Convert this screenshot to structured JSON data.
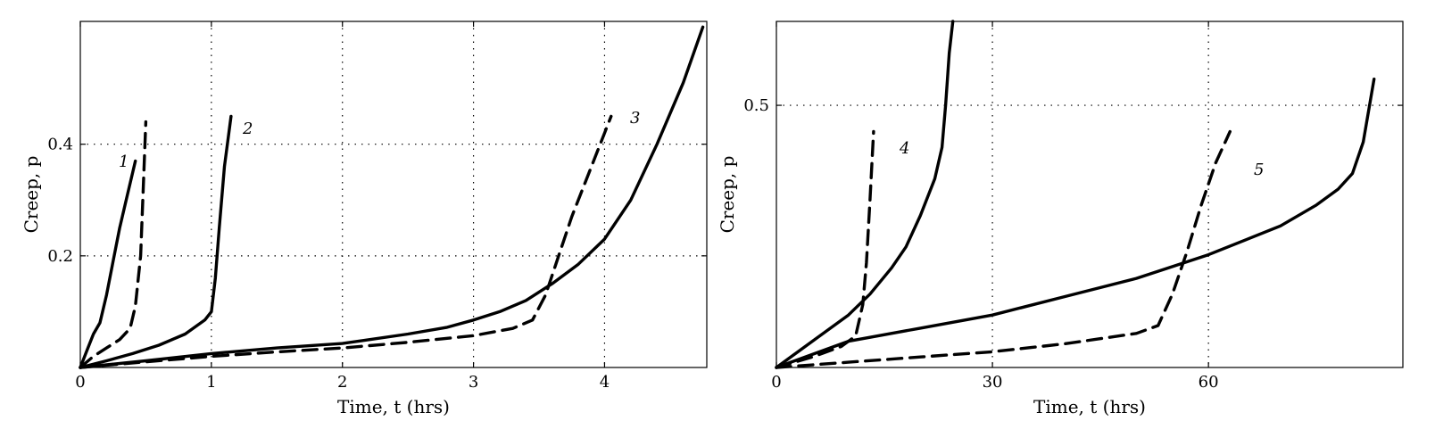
{
  "chart_data": [
    {
      "type": "line",
      "xlabel": "Time, t (hrs)",
      "ylabel": "Creep, p",
      "xlim": [
        0,
        4.78
      ],
      "ylim": [
        0,
        0.62
      ],
      "xticks": [
        0,
        1,
        2,
        3,
        4
      ],
      "xtick_labels": [
        "0",
        "1",
        "2",
        "3",
        "4"
      ],
      "yticks": [
        0.2,
        0.4
      ],
      "ytick_labels": [
        "0.2",
        "0.4"
      ],
      "grid": true,
      "series": [
        {
          "label": "1",
          "style": "solid",
          "x": [
            0,
            0.05,
            0.1,
            0.15,
            0.2,
            0.25,
            0.3,
            0.35,
            0.42
          ],
          "y": [
            0,
            0.03,
            0.06,
            0.08,
            0.13,
            0.19,
            0.25,
            0.3,
            0.37
          ]
        },
        {
          "label": "",
          "style": "dashed",
          "x": [
            0,
            0.1,
            0.2,
            0.3,
            0.38,
            0.42,
            0.46,
            0.48,
            0.5
          ],
          "y": [
            0,
            0.02,
            0.035,
            0.05,
            0.07,
            0.11,
            0.2,
            0.32,
            0.44
          ]
        },
        {
          "label": "2",
          "style": "solid",
          "x": [
            0,
            0.2,
            0.4,
            0.6,
            0.8,
            0.95,
            1.0,
            1.03,
            1.06,
            1.1,
            1.15
          ],
          "y": [
            0,
            0.012,
            0.025,
            0.04,
            0.06,
            0.085,
            0.1,
            0.16,
            0.25,
            0.36,
            0.45
          ]
        },
        {
          "label": "3",
          "style": "solid",
          "x": [
            0,
            0.5,
            1,
            1.5,
            2,
            2.5,
            2.8,
            3.0,
            3.2,
            3.4,
            3.6,
            3.8,
            4.0,
            4.2,
            4.4,
            4.6,
            4.75
          ],
          "y": [
            0,
            0.012,
            0.025,
            0.035,
            0.043,
            0.06,
            0.072,
            0.085,
            0.1,
            0.12,
            0.15,
            0.185,
            0.23,
            0.3,
            0.4,
            0.51,
            0.61
          ]
        },
        {
          "label": "",
          "style": "dashed",
          "x": [
            0,
            0.5,
            1,
            1.5,
            2,
            2.5,
            3.0,
            3.3,
            3.45,
            3.55,
            3.65,
            3.75,
            3.85,
            3.95,
            4.05
          ],
          "y": [
            0,
            0.01,
            0.02,
            0.028,
            0.035,
            0.045,
            0.057,
            0.07,
            0.085,
            0.13,
            0.2,
            0.27,
            0.33,
            0.39,
            0.45
          ]
        }
      ],
      "annotations": [
        "1",
        "2",
        "3"
      ]
    },
    {
      "type": "line",
      "xlabel": "Time, t (hrs)",
      "ylabel": "Creep, p",
      "xlim": [
        0,
        87
      ],
      "ylim": [
        0,
        0.66
      ],
      "xticks": [
        0,
        30,
        60
      ],
      "xtick_labels": [
        "0",
        "30",
        "60"
      ],
      "yticks": [
        0.5
      ],
      "ytick_labels": [
        "0.5"
      ],
      "grid": true,
      "series": [
        {
          "label": "4",
          "style": "solid",
          "x": [
            0,
            5,
            10,
            13,
            16,
            18,
            20,
            22,
            23,
            23.5,
            24,
            24.5
          ],
          "y": [
            0,
            0.05,
            0.1,
            0.14,
            0.19,
            0.23,
            0.29,
            0.36,
            0.42,
            0.5,
            0.6,
            0.66
          ]
        },
        {
          "label": "",
          "style": "dashed",
          "x": [
            0,
            5,
            9,
            11,
            12,
            12.5,
            13,
            13.5
          ],
          "y": [
            0,
            0.02,
            0.04,
            0.06,
            0.12,
            0.2,
            0.32,
            0.45
          ]
        },
        {
          "label": "5",
          "style": "solid",
          "x": [
            0,
            10,
            20,
            30,
            40,
            50,
            60,
            70,
            75,
            78,
            80,
            81.5,
            83
          ],
          "y": [
            0,
            0.05,
            0.075,
            0.1,
            0.135,
            0.17,
            0.215,
            0.27,
            0.31,
            0.34,
            0.37,
            0.43,
            0.55
          ]
        },
        {
          "label": "",
          "style": "dashed",
          "x": [
            0,
            10,
            20,
            30,
            40,
            50,
            53,
            55,
            57,
            59,
            61,
            63
          ],
          "y": [
            0,
            0.01,
            0.02,
            0.03,
            0.045,
            0.065,
            0.08,
            0.14,
            0.22,
            0.31,
            0.39,
            0.45
          ]
        }
      ],
      "annotations": [
        "4",
        "5"
      ]
    }
  ]
}
